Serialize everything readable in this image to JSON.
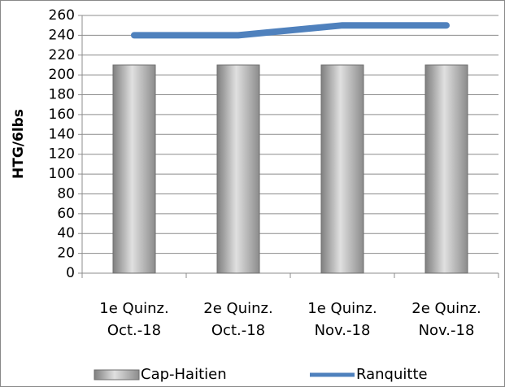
{
  "chart_data": {
    "type": "bar",
    "y_label": "HTG/6lbs",
    "categories": [
      "1e Quinz. Oct.-18",
      "2e Quinz. Oct.-18",
      "1e Quinz. Nov.-18",
      "2e Quinz. Nov.-18"
    ],
    "series": [
      {
        "name": "Cap-Haitien",
        "type": "bar",
        "color": "#a6a6a6",
        "values": [
          210,
          210,
          210,
          210
        ]
      },
      {
        "name": "Ranquitte",
        "type": "line",
        "color": "#4f81bd",
        "values": [
          240,
          240,
          250,
          250
        ]
      }
    ],
    "ylim": [
      0,
      260
    ],
    "yticks": [
      0,
      20,
      40,
      60,
      80,
      100,
      120,
      140,
      160,
      180,
      200,
      220,
      240,
      260
    ],
    "grid": true,
    "legend": "bottom"
  }
}
